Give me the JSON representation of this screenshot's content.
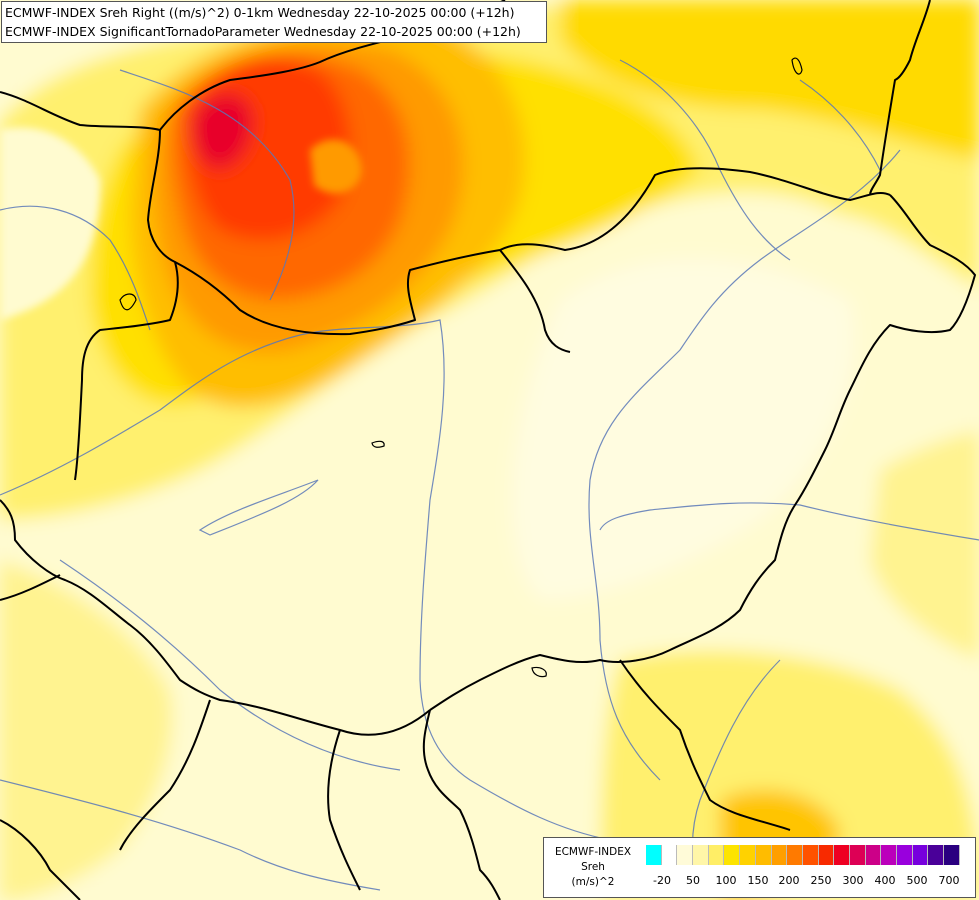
{
  "header": {
    "line1": "ECMWF-INDEX Sreh Right ((m/s)^2) 0-1km Wednesday 22-10-2025 00:00 (+12h)",
    "line2": "ECMWF-INDEX SignificantTornadoParameter Wednesday 22-10-2025 00:00 (+12h)"
  },
  "legend": {
    "title_line1": "ECMWF-INDEX",
    "title_line2": "Sreh",
    "title_line3": "(m/s)^2",
    "labels": [
      "-20",
      "50",
      "100",
      "150",
      "200",
      "250",
      "300",
      "400",
      "500",
      "700"
    ],
    "swatch_colors": [
      "#00ffff",
      "#ffffff",
      "#fffbd8",
      "#fff6a8",
      "#ffee66",
      "#fde400",
      "#ffd200",
      "#ffbc00",
      "#ff9f00",
      "#ff7a00",
      "#ff5200",
      "#f82a00",
      "#ee0022",
      "#dd0055",
      "#cc0088",
      "#bb00bb",
      "#9900dd",
      "#7700dd",
      "#4a0099",
      "#2a0080"
    ]
  },
  "colors": {
    "background": "#fffbd0",
    "border_lines": "#000000",
    "river_lines": "#5a78b8"
  }
}
